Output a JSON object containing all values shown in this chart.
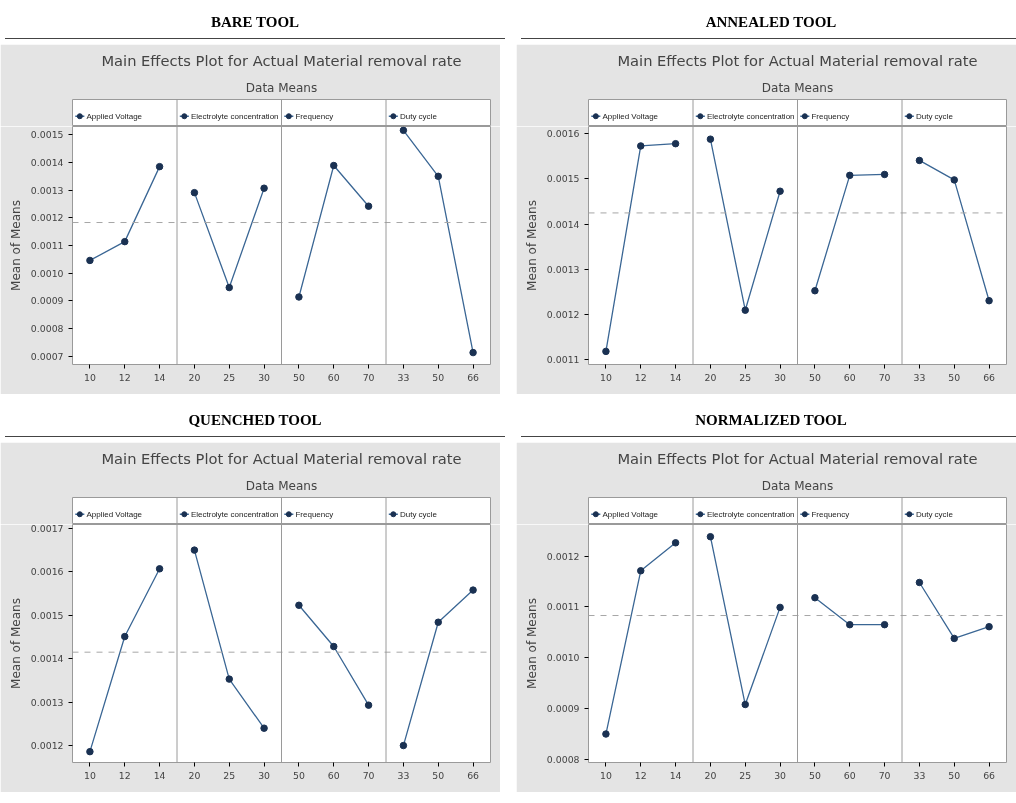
{
  "chart_data": [
    {
      "type": "line",
      "annotations": [
        "BARE TOOL"
      ],
      "title": "Main Effects Plot for Actual Material removal rate",
      "subtitle": "Data Means",
      "ylabel": "Mean of Means",
      "categories": [
        "10",
        "12",
        "14",
        "20",
        "25",
        "30",
        "50",
        "60",
        "70",
        "33",
        "50",
        "66"
      ],
      "ylim": [
        0.00067,
        0.00153
      ],
      "yticks": [
        0.0007,
        0.0008,
        0.0009,
        {
          "value": 0.001,
          "label": "0.0010"
        },
        0.0011,
        0.0012,
        0.0013,
        0.0014,
        0.0015
      ],
      "grid": false,
      "legend": "top",
      "marker": "circle",
      "line_style": "solid",
      "ref_lines": [
        {
          "axis": "y",
          "value": 0.001183,
          "color": "#a6a6a6",
          "line_style": "dashed"
        }
      ],
      "series": [
        {
          "name": "Applied Voltage",
          "color": "#3a6694",
          "values": [
            0.001046,
            0.001114,
            0.001385,
            null,
            null,
            null,
            null,
            null,
            null,
            null,
            null,
            null
          ]
        },
        {
          "name": "Electrolyte concentration",
          "color": "#3a6694",
          "values": [
            null,
            null,
            null,
            0.001291,
            0.000948,
            0.001307,
            null,
            null,
            null,
            null,
            null,
            null
          ]
        },
        {
          "name": "Frequency",
          "color": "#3a6694",
          "values": [
            null,
            null,
            null,
            null,
            null,
            null,
            0.000914,
            0.001389,
            0.001242,
            null,
            null,
            null
          ]
        },
        {
          "name": "Duty cycle",
          "color": "#3a6694",
          "values": [
            null,
            null,
            null,
            null,
            null,
            null,
            null,
            null,
            null,
            0.001516,
            0.00135,
            0.000713
          ]
        }
      ]
    },
    {
      "type": "line",
      "annotations": [
        "ANNEALED TOOL"
      ],
      "title": "Main Effects Plot for Actual Material removal rate",
      "subtitle": "Data Means",
      "ylabel": "Mean of Means",
      "categories": [
        "10",
        "12",
        "14",
        "20",
        "25",
        "30",
        "50",
        "60",
        "70",
        "33",
        "50",
        "66"
      ],
      "ylim": [
        0.00109,
        0.001616
      ],
      "yticks": [
        0.0011,
        0.0012,
        0.0013,
        0.0014,
        0.0015,
        0.0016
      ],
      "grid": false,
      "legend": "top",
      "marker": "circle",
      "line_style": "solid",
      "ref_lines": [
        {
          "axis": "y",
          "value": 0.001425,
          "color": "#a6a6a6",
          "line_style": "dashed"
        }
      ],
      "series": [
        {
          "name": "Applied Voltage",
          "color": "#3a6694",
          "values": [
            0.001119,
            0.001573,
            0.001578,
            null,
            null,
            null,
            null,
            null,
            null,
            null,
            null,
            null
          ]
        },
        {
          "name": "Electrolyte concentration",
          "color": "#3a6694",
          "values": [
            null,
            null,
            null,
            0.001588,
            0.00121,
            0.001473,
            null,
            null,
            null,
            null,
            null,
            null
          ]
        },
        {
          "name": "Frequency",
          "color": "#3a6694",
          "values": [
            null,
            null,
            null,
            null,
            null,
            null,
            0.001253,
            0.001508,
            0.00151,
            null,
            null,
            null
          ]
        },
        {
          "name": "Duty cycle",
          "color": "#3a6694",
          "values": [
            null,
            null,
            null,
            null,
            null,
            null,
            null,
            null,
            null,
            0.001541,
            0.001498,
            0.001231
          ]
        }
      ]
    },
    {
      "type": "line",
      "annotations": [
        "QUENCHED TOOL"
      ],
      "title": "Main Effects Plot for Actual Material removal rate",
      "subtitle": "Data Means",
      "ylabel": "Mean of Means",
      "categories": [
        "10",
        "12",
        "14",
        "20",
        "25",
        "30",
        "50",
        "60",
        "70",
        "33",
        "50",
        "66"
      ],
      "ylim": [
        0.001161,
        0.001709
      ],
      "yticks": [
        0.0012,
        0.0013,
        0.0014,
        0.0015,
        0.0016,
        0.0017
      ],
      "grid": false,
      "legend": "top",
      "marker": "circle",
      "line_style": "solid",
      "ref_lines": [
        {
          "axis": "y",
          "value": 0.001415,
          "color": "#a6a6a6",
          "line_style": "dashed"
        }
      ],
      "series": [
        {
          "name": "Applied Voltage",
          "color": "#3a6694",
          "values": [
            0.001186,
            0.001451,
            0.001607,
            null,
            null,
            null,
            null,
            null,
            null,
            null,
            null,
            null
          ]
        },
        {
          "name": "Electrolyte concentration",
          "color": "#3a6694",
          "values": [
            null,
            null,
            null,
            0.00165,
            0.001353,
            0.00124,
            null,
            null,
            null,
            null,
            null,
            null
          ]
        },
        {
          "name": "Frequency",
          "color": "#3a6694",
          "values": [
            null,
            null,
            null,
            null,
            null,
            null,
            0.001523,
            0.001428,
            0.001293,
            null,
            null,
            null
          ]
        },
        {
          "name": "Duty cycle",
          "color": "#3a6694",
          "values": [
            null,
            null,
            null,
            null,
            null,
            null,
            null,
            null,
            null,
            0.0012,
            0.001484,
            0.001558
          ]
        }
      ]
    },
    {
      "type": "line",
      "annotations": [
        "NORMALIZED TOOL"
      ],
      "title": "Main Effects Plot for Actual Material removal rate",
      "subtitle": "Data Means",
      "ylabel": "Mean of Means",
      "categories": [
        "10",
        "12",
        "14",
        "20",
        "25",
        "30",
        "50",
        "60",
        "70",
        "33",
        "50",
        "66"
      ],
      "ylim": [
        0.000794,
        0.001262
      ],
      "yticks": [
        0.0008,
        0.0009,
        {
          "value": 0.001,
          "label": "0.0010"
        },
        0.0011,
        0.0012
      ],
      "grid": false,
      "legend": "top",
      "marker": "circle",
      "line_style": "solid",
      "ref_lines": [
        {
          "axis": "y",
          "value": 0.001083,
          "color": "#a6a6a6",
          "line_style": "dashed"
        }
      ],
      "series": [
        {
          "name": "Applied Voltage",
          "color": "#3a6694",
          "values": [
            0.00085,
            0.001171,
            0.001226,
            null,
            null,
            null,
            null,
            null,
            null,
            null,
            null,
            null
          ]
        },
        {
          "name": "Electrolyte concentration",
          "color": "#3a6694",
          "values": [
            null,
            null,
            null,
            0.001238,
            0.000908,
            0.001099,
            null,
            null,
            null,
            null,
            null,
            null
          ]
        },
        {
          "name": "Frequency",
          "color": "#3a6694",
          "values": [
            null,
            null,
            null,
            null,
            null,
            null,
            0.001118,
            0.001065,
            0.001065,
            null,
            null,
            null
          ]
        },
        {
          "name": "Duty cycle",
          "color": "#3a6694",
          "values": [
            null,
            null,
            null,
            null,
            null,
            null,
            null,
            null,
            null,
            0.001148,
            0.001038,
            0.001061
          ]
        }
      ]
    }
  ]
}
